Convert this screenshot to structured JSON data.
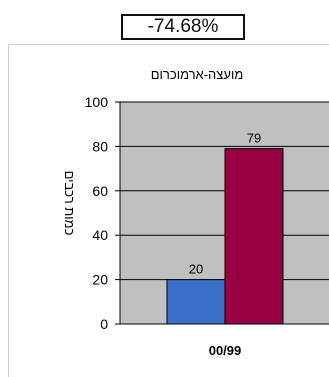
{
  "change_box": {
    "text": "-74.68%"
  },
  "chart_data": {
    "type": "bar",
    "title": "מועצה-ארמוכרום",
    "ylabel": "כמות רכבים",
    "xlabel": "",
    "categories": [
      "00/99"
    ],
    "series": [
      {
        "values": [
          20
        ],
        "color": "#3a70c8"
      },
      {
        "values": [
          79
        ],
        "color": "#990044"
      }
    ],
    "data_labels": [
      "20",
      "79"
    ],
    "ylim": [
      0,
      100
    ],
    "yticks": [
      0,
      20,
      40,
      60,
      80,
      100
    ],
    "grid": true,
    "plot_background": "#c0c0c0"
  }
}
